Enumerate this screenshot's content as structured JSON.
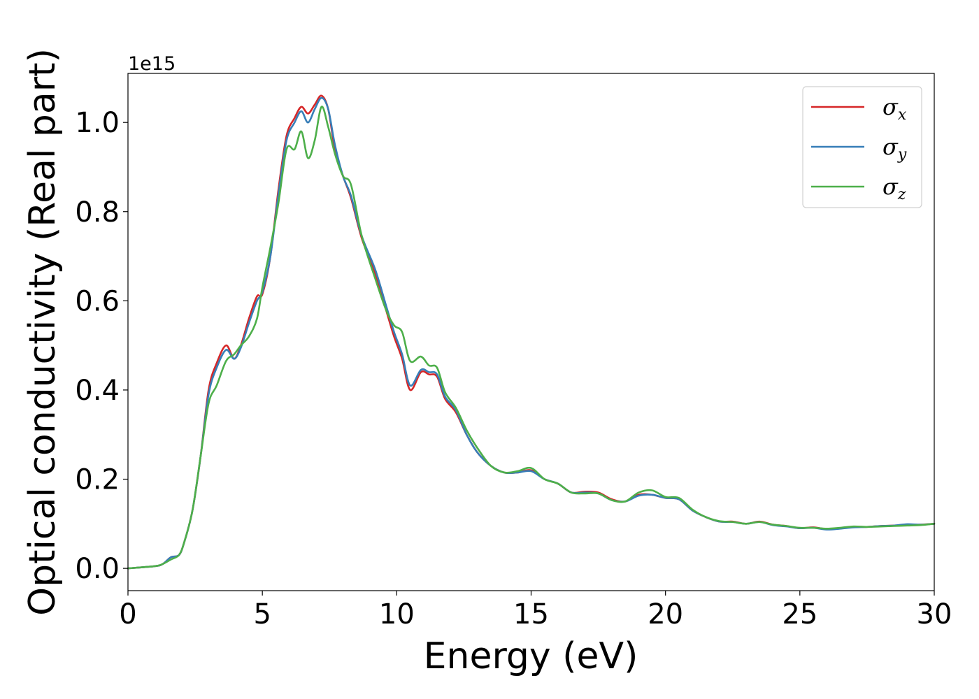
{
  "chart_data": {
    "type": "line",
    "title": "",
    "xlabel": "Energy (eV)",
    "ylabel": "Optical conductivity (Real part)",
    "y_offset_label": "1e15",
    "xlim": [
      0,
      30
    ],
    "ylim": [
      -0.05,
      1.11
    ],
    "xticks": [
      0,
      5,
      10,
      15,
      20,
      25,
      30
    ],
    "xtick_labels": [
      "0",
      "5",
      "10",
      "15",
      "20",
      "25",
      "30"
    ],
    "yticks": [
      0.0,
      0.2,
      0.4,
      0.6,
      0.8,
      1.0
    ],
    "ytick_labels": [
      "0.0",
      "0.2",
      "0.4",
      "0.6",
      "0.8",
      "1.0"
    ],
    "grid": false,
    "legend_position": "top-right",
    "series": [
      {
        "name": "σ",
        "subscript": "x",
        "color": "#d62728",
        "x": [
          0,
          1,
          1.3,
          1.6,
          1.9,
          2.1,
          2.4,
          2.7,
          3.0,
          3.3,
          3.65,
          3.95,
          4.2,
          4.5,
          4.8,
          5.0,
          5.3,
          5.6,
          5.9,
          6.2,
          6.45,
          6.7,
          6.95,
          7.2,
          7.45,
          7.7,
          8.0,
          8.3,
          8.7,
          9.2,
          9.6,
          9.9,
          10.2,
          10.5,
          10.9,
          11.2,
          11.5,
          11.8,
          12.2,
          12.6,
          13.0,
          13.5,
          14.0,
          14.5,
          15.0,
          15.5,
          16.0,
          16.5,
          17.0,
          17.5,
          18.0,
          18.5,
          19.0,
          19.5,
          20.0,
          20.5,
          21.0,
          21.5,
          22.0,
          22.5,
          23.0,
          23.5,
          24.0,
          24.5,
          25.0,
          25.5,
          26.0,
          26.5,
          27.0,
          27.5,
          28.0,
          28.5,
          29.0,
          29.5,
          30.0
        ],
        "y": [
          0.0,
          0.005,
          0.01,
          0.025,
          0.03,
          0.06,
          0.13,
          0.25,
          0.4,
          0.46,
          0.5,
          0.47,
          0.5,
          0.56,
          0.61,
          0.615,
          0.7,
          0.85,
          0.97,
          1.01,
          1.035,
          1.02,
          1.04,
          1.06,
          1.03,
          0.94,
          0.88,
          0.83,
          0.74,
          0.66,
          0.58,
          0.52,
          0.47,
          0.4,
          0.44,
          0.435,
          0.43,
          0.38,
          0.35,
          0.3,
          0.26,
          0.23,
          0.215,
          0.215,
          0.22,
          0.2,
          0.19,
          0.17,
          0.172,
          0.17,
          0.155,
          0.15,
          0.165,
          0.165,
          0.158,
          0.155,
          0.13,
          0.115,
          0.105,
          0.105,
          0.1,
          0.105,
          0.098,
          0.095,
          0.09,
          0.092,
          0.088,
          0.09,
          0.093,
          0.093,
          0.095,
          0.096,
          0.098,
          0.098,
          0.1
        ]
      },
      {
        "name": "σ",
        "subscript": "y",
        "color": "#377eb8",
        "x": [
          0,
          1,
          1.3,
          1.6,
          1.9,
          2.1,
          2.4,
          2.7,
          3.0,
          3.3,
          3.65,
          3.95,
          4.2,
          4.5,
          4.8,
          5.0,
          5.3,
          5.6,
          5.9,
          6.2,
          6.45,
          6.7,
          6.95,
          7.2,
          7.45,
          7.7,
          8.0,
          8.3,
          8.7,
          9.2,
          9.6,
          9.9,
          10.2,
          10.5,
          10.9,
          11.2,
          11.5,
          11.8,
          12.2,
          12.6,
          13.0,
          13.5,
          14.0,
          14.5,
          15.0,
          15.5,
          16.0,
          16.5,
          17.0,
          17.5,
          18.0,
          18.5,
          19.0,
          19.5,
          20.0,
          20.5,
          21.0,
          21.5,
          22.0,
          22.5,
          23.0,
          23.5,
          24.0,
          24.5,
          25.0,
          25.5,
          26.0,
          26.5,
          27.0,
          27.5,
          28.0,
          28.5,
          29.0,
          29.5,
          30.0
        ],
        "y": [
          0.0,
          0.005,
          0.01,
          0.025,
          0.03,
          0.06,
          0.13,
          0.25,
          0.39,
          0.45,
          0.49,
          0.47,
          0.495,
          0.55,
          0.6,
          0.62,
          0.7,
          0.84,
          0.96,
          1.0,
          1.025,
          1.0,
          1.03,
          1.055,
          1.03,
          0.95,
          0.88,
          0.835,
          0.745,
          0.67,
          0.59,
          0.53,
          0.48,
          0.41,
          0.445,
          0.44,
          0.435,
          0.385,
          0.355,
          0.3,
          0.26,
          0.23,
          0.215,
          0.215,
          0.218,
          0.2,
          0.19,
          0.17,
          0.17,
          0.168,
          0.153,
          0.15,
          0.163,
          0.165,
          0.158,
          0.155,
          0.13,
          0.115,
          0.105,
          0.104,
          0.1,
          0.104,
          0.097,
          0.094,
          0.09,
          0.091,
          0.087,
          0.089,
          0.092,
          0.093,
          0.095,
          0.096,
          0.099,
          0.098,
          0.1
        ]
      },
      {
        "name": "σ",
        "subscript": "z",
        "color": "#4daf4a",
        "x": [
          0,
          1,
          1.3,
          1.6,
          1.9,
          2.1,
          2.4,
          2.7,
          3.0,
          3.3,
          3.65,
          3.95,
          4.2,
          4.5,
          4.8,
          5.0,
          5.3,
          5.6,
          5.9,
          6.2,
          6.45,
          6.7,
          6.95,
          7.2,
          7.45,
          7.7,
          8.0,
          8.3,
          8.7,
          9.2,
          9.6,
          9.9,
          10.2,
          10.5,
          10.9,
          11.2,
          11.5,
          11.8,
          12.2,
          12.6,
          13.0,
          13.5,
          14.0,
          14.5,
          15.0,
          15.5,
          16.0,
          16.5,
          17.0,
          17.5,
          18.0,
          18.5,
          19.0,
          19.5,
          20.0,
          20.5,
          21.0,
          21.5,
          22.0,
          22.5,
          23.0,
          23.5,
          24.0,
          24.5,
          25.0,
          25.5,
          26.0,
          26.5,
          27.0,
          27.5,
          28.0,
          28.5,
          29.0,
          29.5,
          30.0
        ],
        "y": [
          0.0,
          0.005,
          0.01,
          0.02,
          0.03,
          0.06,
          0.13,
          0.25,
          0.37,
          0.41,
          0.465,
          0.48,
          0.5,
          0.52,
          0.56,
          0.63,
          0.72,
          0.82,
          0.94,
          0.94,
          0.98,
          0.92,
          0.96,
          1.035,
          0.99,
          0.93,
          0.88,
          0.86,
          0.745,
          0.65,
          0.58,
          0.545,
          0.53,
          0.465,
          0.475,
          0.455,
          0.45,
          0.395,
          0.36,
          0.31,
          0.27,
          0.23,
          0.215,
          0.218,
          0.225,
          0.2,
          0.19,
          0.17,
          0.168,
          0.168,
          0.153,
          0.15,
          0.17,
          0.175,
          0.16,
          0.158,
          0.132,
          0.115,
          0.106,
          0.104,
          0.1,
          0.104,
          0.098,
          0.095,
          0.091,
          0.091,
          0.089,
          0.091,
          0.094,
          0.093,
          0.094,
          0.095,
          0.096,
          0.097,
          0.1
        ]
      }
    ]
  }
}
